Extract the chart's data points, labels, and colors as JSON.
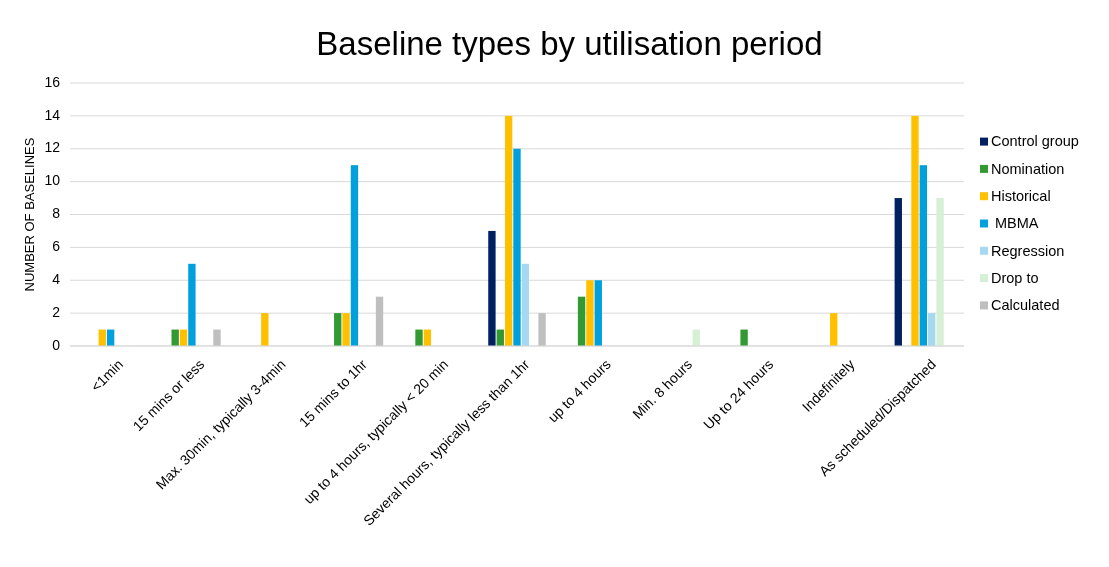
{
  "chart_data": {
    "type": "bar",
    "title": "Baseline types by utilisation period",
    "ylabel": "NUMBER OF BASELINES",
    "categories": [
      "<1min",
      "15 mins or less",
      "Max. 30min, typically 3-4min",
      "15 mins to 1hr",
      "up to 4 hours, typically < 20 min",
      "Several hours, typically less than 1hr",
      "up to 4 hours",
      "Min. 8 hours",
      "Up to 24 hours",
      "Indefinitely",
      "As scheduled/Dispatched"
    ],
    "series": [
      {
        "name": "Control group",
        "color": "#002060",
        "values": [
          null,
          null,
          null,
          null,
          null,
          7,
          null,
          null,
          null,
          null,
          9
        ]
      },
      {
        "name": "Nomination",
        "color": "#339933",
        "values": [
          null,
          1,
          null,
          2,
          1,
          1,
          3,
          null,
          1,
          null,
          null
        ]
      },
      {
        "name": "Historical",
        "color": "#ffc000",
        "values": [
          1,
          1,
          2,
          2,
          1,
          14,
          4,
          null,
          null,
          2,
          14
        ]
      },
      {
        "name": " MBMA",
        "color": "#00a0dc",
        "values": [
          1,
          5,
          null,
          11,
          null,
          12,
          4,
          null,
          null,
          null,
          11
        ]
      },
      {
        "name": "Regression",
        "color": "#a6d9f0",
        "values": [
          null,
          null,
          null,
          null,
          null,
          5,
          null,
          null,
          null,
          null,
          2
        ]
      },
      {
        "name": "Drop to",
        "color": "#d5f0d5",
        "values": [
          null,
          null,
          null,
          null,
          null,
          null,
          null,
          1,
          null,
          null,
          9
        ]
      },
      {
        "name": "Calculated",
        "color": "#bfbfbf",
        "values": [
          null,
          1,
          null,
          3,
          null,
          2,
          null,
          null,
          null,
          null,
          null
        ]
      }
    ],
    "ylim": [
      0,
      16
    ],
    "yticks": [
      0,
      2,
      4,
      6,
      8,
      10,
      12,
      14,
      16
    ],
    "grid": "y",
    "legend": "right"
  }
}
